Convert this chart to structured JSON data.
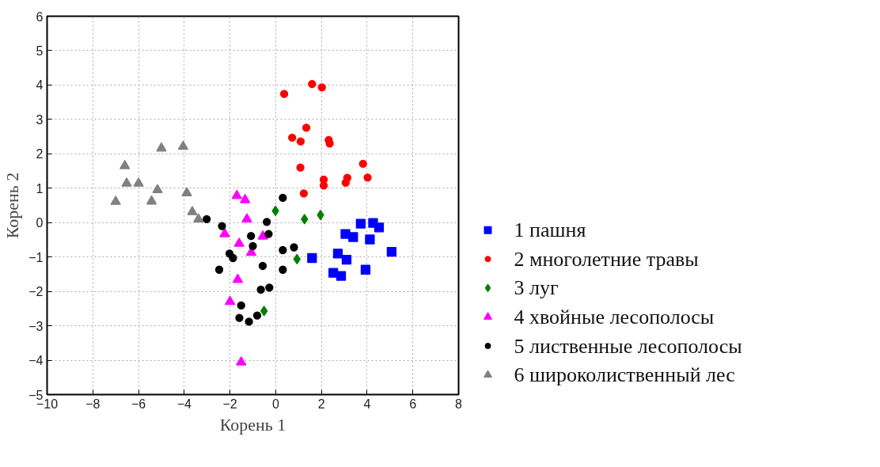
{
  "chart_data": {
    "type": "scatter",
    "xlabel": "Корень 1",
    "ylabel": "Корень 2",
    "xlim": [
      -10,
      8
    ],
    "ylim": [
      -5,
      6
    ],
    "xticks": [
      -10,
      -8,
      -6,
      -4,
      -2,
      0,
      2,
      4,
      6,
      8
    ],
    "yticks": [
      -5,
      -4,
      -3,
      -2,
      -1,
      0,
      1,
      2,
      3,
      4,
      5,
      6
    ],
    "grid": true,
    "legend": "right",
    "series": [
      {
        "name": "1 пашня",
        "color": "#0000ff",
        "marker": "square",
        "x": [
          1.59,
          3.72,
          4.26,
          4.52,
          4.12,
          3.05,
          3.39,
          5.07,
          2.72,
          3.1,
          2.52,
          2.86,
          3.93
        ],
        "values": [
          -1.03,
          -0.03,
          -0.01,
          -0.14,
          -0.49,
          -0.33,
          -0.42,
          -0.85,
          -0.9,
          -1.08,
          -1.46,
          -1.55,
          -1.37
        ]
      },
      {
        "name": "2 многолетние травы",
        "color": "#ff0000",
        "marker": "circle",
        "x": [
          0.37,
          1.59,
          2.02,
          1.34,
          0.72,
          1.09,
          2.32,
          2.36,
          1.08,
          3.82,
          2.1,
          2.1,
          3.13,
          3.06,
          4.02,
          1.23
        ],
        "values": [
          3.74,
          4.03,
          3.93,
          2.76,
          2.47,
          2.36,
          2.4,
          2.3,
          1.6,
          1.71,
          1.25,
          1.08,
          1.3,
          1.16,
          1.31,
          0.85
        ]
      },
      {
        "name": "3 луг",
        "color": "#008000",
        "marker": "diamond",
        "x": [
          -0.01,
          1.26,
          1.96,
          0.93,
          -0.51
        ],
        "values": [
          0.34,
          0.1,
          0.22,
          -1.06,
          -2.57
        ]
      },
      {
        "name": "4 хвойные лесополосы",
        "color": "#ff00ff",
        "marker": "triangle",
        "x": [
          -1.7,
          -1.34,
          -1.26,
          -2.23,
          -1.6,
          -1.07,
          -0.56,
          -1.66,
          -2.0,
          -1.51
        ],
        "values": [
          0.78,
          0.66,
          0.1,
          -0.33,
          -0.61,
          -0.87,
          -0.4,
          -1.66,
          -2.3,
          -4.06
        ]
      },
      {
        "name": "5 лиственные лесополосы",
        "color": "#000000",
        "marker": "circle",
        "x": [
          0.31,
          -0.39,
          -0.31,
          -2.35,
          -1.08,
          -1.0,
          -2.02,
          -1.87,
          0.31,
          0.8,
          0.31,
          -0.57,
          -2.47,
          -0.28,
          -0.65,
          -1.51,
          -1.59,
          -1.17,
          -0.81,
          -3.02
        ],
        "values": [
          0.72,
          0.02,
          -0.33,
          -0.1,
          -0.39,
          -0.68,
          -0.9,
          -1.03,
          -0.8,
          -0.72,
          -1.37,
          -1.26,
          -1.37,
          -1.89,
          -1.95,
          -2.41,
          -2.77,
          -2.88,
          -2.7,
          0.1
        ]
      },
      {
        "name": "6 широколиственный лес",
        "color": "#808080",
        "marker": "triangle",
        "x": [
          -5.0,
          -4.05,
          -6.6,
          -6.52,
          -6.0,
          -5.17,
          -5.43,
          -7.0,
          -3.89,
          -3.65,
          -3.38
        ],
        "values": [
          2.16,
          2.21,
          1.65,
          1.14,
          1.14,
          0.95,
          0.62,
          0.61,
          0.86,
          0.31,
          0.1
        ]
      }
    ]
  }
}
